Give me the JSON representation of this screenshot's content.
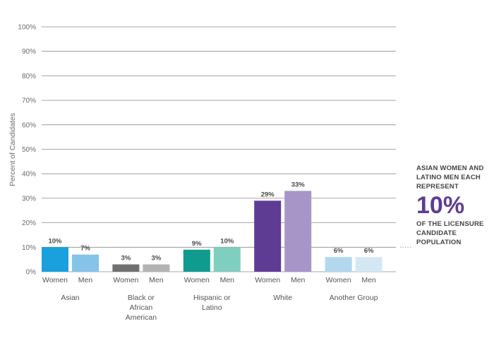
{
  "chart_data": {
    "type": "bar",
    "ylabel": "Percent of Candidates",
    "ylim": [
      0,
      100
    ],
    "yticks": [
      "0%",
      "10%",
      "20%",
      "30%",
      "40%",
      "50%",
      "60%",
      "70%",
      "80%",
      "90%",
      "100%"
    ],
    "grid": true,
    "groups": [
      {
        "name": "Asian",
        "bars": [
          {
            "label": "Women",
            "value": 10,
            "text": "10%",
            "color": "#1aa0dd"
          },
          {
            "label": "Men",
            "value": 7,
            "text": "7%",
            "color": "#86c3e9"
          }
        ]
      },
      {
        "name": "Black or African American",
        "bars": [
          {
            "label": "Women",
            "value": 3,
            "text": "3%",
            "color": "#707070"
          },
          {
            "label": "Men",
            "value": 3,
            "text": "3%",
            "color": "#b3b3b3"
          }
        ]
      },
      {
        "name": "Hispanic or Latino",
        "bars": [
          {
            "label": "Women",
            "value": 9,
            "text": "9%",
            "color": "#0f9b8e"
          },
          {
            "label": "Men",
            "value": 10,
            "text": "10%",
            "color": "#7fcfc1"
          }
        ]
      },
      {
        "name": "White",
        "bars": [
          {
            "label": "Women",
            "value": 29,
            "text": "29%",
            "color": "#5e3c94"
          },
          {
            "label": "Men",
            "value": 33,
            "text": "33%",
            "color": "#a795c8"
          }
        ]
      },
      {
        "name": "Another Group",
        "bars": [
          {
            "label": "Women",
            "value": 6,
            "text": "6%",
            "color": "#b2d8ee"
          },
          {
            "label": "Men",
            "value": 6,
            "text": "6%",
            "color": "#d4e8f4"
          }
        ]
      }
    ]
  },
  "callout": {
    "top_text": "ASIAN WOMEN AND LATINO MEN EACH REPRESENT",
    "big_text": "10%",
    "bottom_text": "OF THE LICENSURE CANDIDATE POPULATION",
    "big_color": "#5e3c94"
  }
}
